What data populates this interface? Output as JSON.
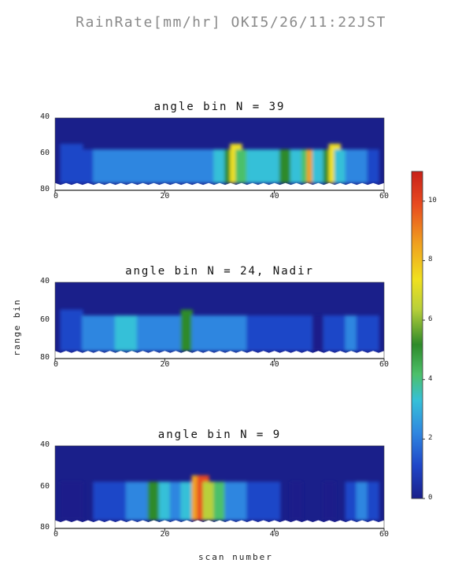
{
  "suptitle": "RainRate[mm/hr] OKI5/26/11:22JST",
  "colorbar": {
    "range": [
      0,
      11
    ],
    "ticks": [
      0,
      2,
      4,
      6,
      8,
      10
    ],
    "colors": [
      "#1a1f8a",
      "#1f46c8",
      "#2f86e0",
      "#36c0d8",
      "#4cc06a",
      "#2e8a2a",
      "#b9d03a",
      "#f0e020",
      "#f0a020",
      "#e84a20",
      "#c82018"
    ]
  },
  "chart_data": [
    {
      "type": "heatmap",
      "title": "angle bin N = 39",
      "xlabel": "scan number",
      "ylabel": "range bin",
      "xlim": [
        0,
        60
      ],
      "ylim": [
        80,
        40
      ],
      "xticks": [
        0,
        20,
        40,
        60
      ],
      "yticks": [
        40,
        60,
        80
      ],
      "background_value": 0.3,
      "cells": [
        [
          2,
          14,
          1.5
        ],
        [
          4,
          14,
          1.5
        ],
        [
          6,
          12,
          1.8
        ],
        [
          8,
          12,
          2.0
        ],
        [
          10,
          12,
          2.2
        ],
        [
          12,
          12,
          2.5
        ],
        [
          14,
          12,
          2.6
        ],
        [
          16,
          12,
          2.6
        ],
        [
          18,
          12,
          2.4
        ],
        [
          20,
          12,
          2.5
        ],
        [
          22,
          12,
          2.8
        ],
        [
          24,
          12,
          2.6
        ],
        [
          26,
          12,
          2.4
        ],
        [
          28,
          12,
          2.6
        ],
        [
          30,
          12,
          3.0
        ],
        [
          32,
          12,
          5.5
        ],
        [
          33,
          14,
          7.0
        ],
        [
          34,
          12,
          4.5
        ],
        [
          36,
          12,
          3.2
        ],
        [
          38,
          12,
          3.0
        ],
        [
          40,
          12,
          3.5
        ],
        [
          42,
          12,
          5.5
        ],
        [
          44,
          12,
          3.5
        ],
        [
          46,
          12,
          4.0
        ],
        [
          47,
          12,
          8.5
        ],
        [
          48,
          12,
          3.0
        ],
        [
          50,
          12,
          5.5
        ],
        [
          51,
          14,
          7.5
        ],
        [
          52,
          12,
          3.0
        ],
        [
          54,
          12,
          2.8
        ],
        [
          56,
          12,
          2.0
        ],
        [
          58,
          12,
          1.2
        ]
      ]
    },
    {
      "type": "heatmap",
      "title": "angle bin N = 24, Nadir",
      "xlabel": "scan number",
      "ylabel": "range bin",
      "xlim": [
        0,
        60
      ],
      "ylim": [
        80,
        40
      ],
      "xticks": [
        0,
        20,
        40,
        60
      ],
      "yticks": [
        40,
        60,
        80
      ],
      "background_value": 0.3,
      "cells": [
        [
          2,
          14,
          1.0
        ],
        [
          4,
          14,
          1.2
        ],
        [
          6,
          12,
          2.0
        ],
        [
          8,
          12,
          2.6
        ],
        [
          10,
          12,
          2.8
        ],
        [
          12,
          12,
          3.0
        ],
        [
          14,
          12,
          3.0
        ],
        [
          16,
          12,
          2.8
        ],
        [
          18,
          12,
          2.8
        ],
        [
          20,
          12,
          2.6
        ],
        [
          22,
          12,
          2.8
        ],
        [
          24,
          14,
          5.5
        ],
        [
          26,
          12,
          2.4
        ],
        [
          28,
          12,
          2.5
        ],
        [
          30,
          12,
          2.6
        ],
        [
          32,
          12,
          2.4
        ],
        [
          34,
          12,
          2.0
        ],
        [
          36,
          12,
          1.8
        ],
        [
          38,
          12,
          1.6
        ],
        [
          40,
          12,
          1.4
        ],
        [
          42,
          12,
          1.2
        ],
        [
          44,
          12,
          1.0
        ],
        [
          46,
          12,
          1.0
        ],
        [
          48,
          12,
          0.8
        ],
        [
          50,
          12,
          1.0
        ],
        [
          52,
          12,
          1.2
        ],
        [
          54,
          12,
          2.0
        ],
        [
          56,
          12,
          1.4
        ],
        [
          58,
          12,
          1.0
        ]
      ]
    },
    {
      "type": "heatmap",
      "title": "angle bin N = 9",
      "xlabel": "scan number",
      "ylabel": "range bin",
      "xlim": [
        0,
        60
      ],
      "ylim": [
        80,
        40
      ],
      "xticks": [
        0,
        20,
        40,
        60
      ],
      "yticks": [
        40,
        60,
        80
      ],
      "background_value": 0.3,
      "cells": [
        [
          2,
          12,
          0.8
        ],
        [
          4,
          12,
          0.8
        ],
        [
          8,
          12,
          1.0
        ],
        [
          10,
          12,
          1.2
        ],
        [
          12,
          12,
          1.6
        ],
        [
          14,
          12,
          2.0
        ],
        [
          16,
          12,
          2.6
        ],
        [
          18,
          12,
          5.0
        ],
        [
          20,
          12,
          3.0
        ],
        [
          22,
          12,
          2.6
        ],
        [
          24,
          12,
          3.2
        ],
        [
          26,
          14,
          8.5
        ],
        [
          27,
          14,
          9.5
        ],
        [
          28,
          12,
          6.5
        ],
        [
          30,
          12,
          4.0
        ],
        [
          32,
          12,
          2.8
        ],
        [
          34,
          12,
          2.0
        ],
        [
          36,
          12,
          1.5
        ],
        [
          38,
          12,
          1.2
        ],
        [
          40,
          12,
          1.0
        ],
        [
          44,
          12,
          0.8
        ],
        [
          50,
          12,
          0.8
        ],
        [
          54,
          12,
          1.6
        ],
        [
          56,
          12,
          2.4
        ],
        [
          58,
          12,
          1.4
        ]
      ]
    }
  ]
}
